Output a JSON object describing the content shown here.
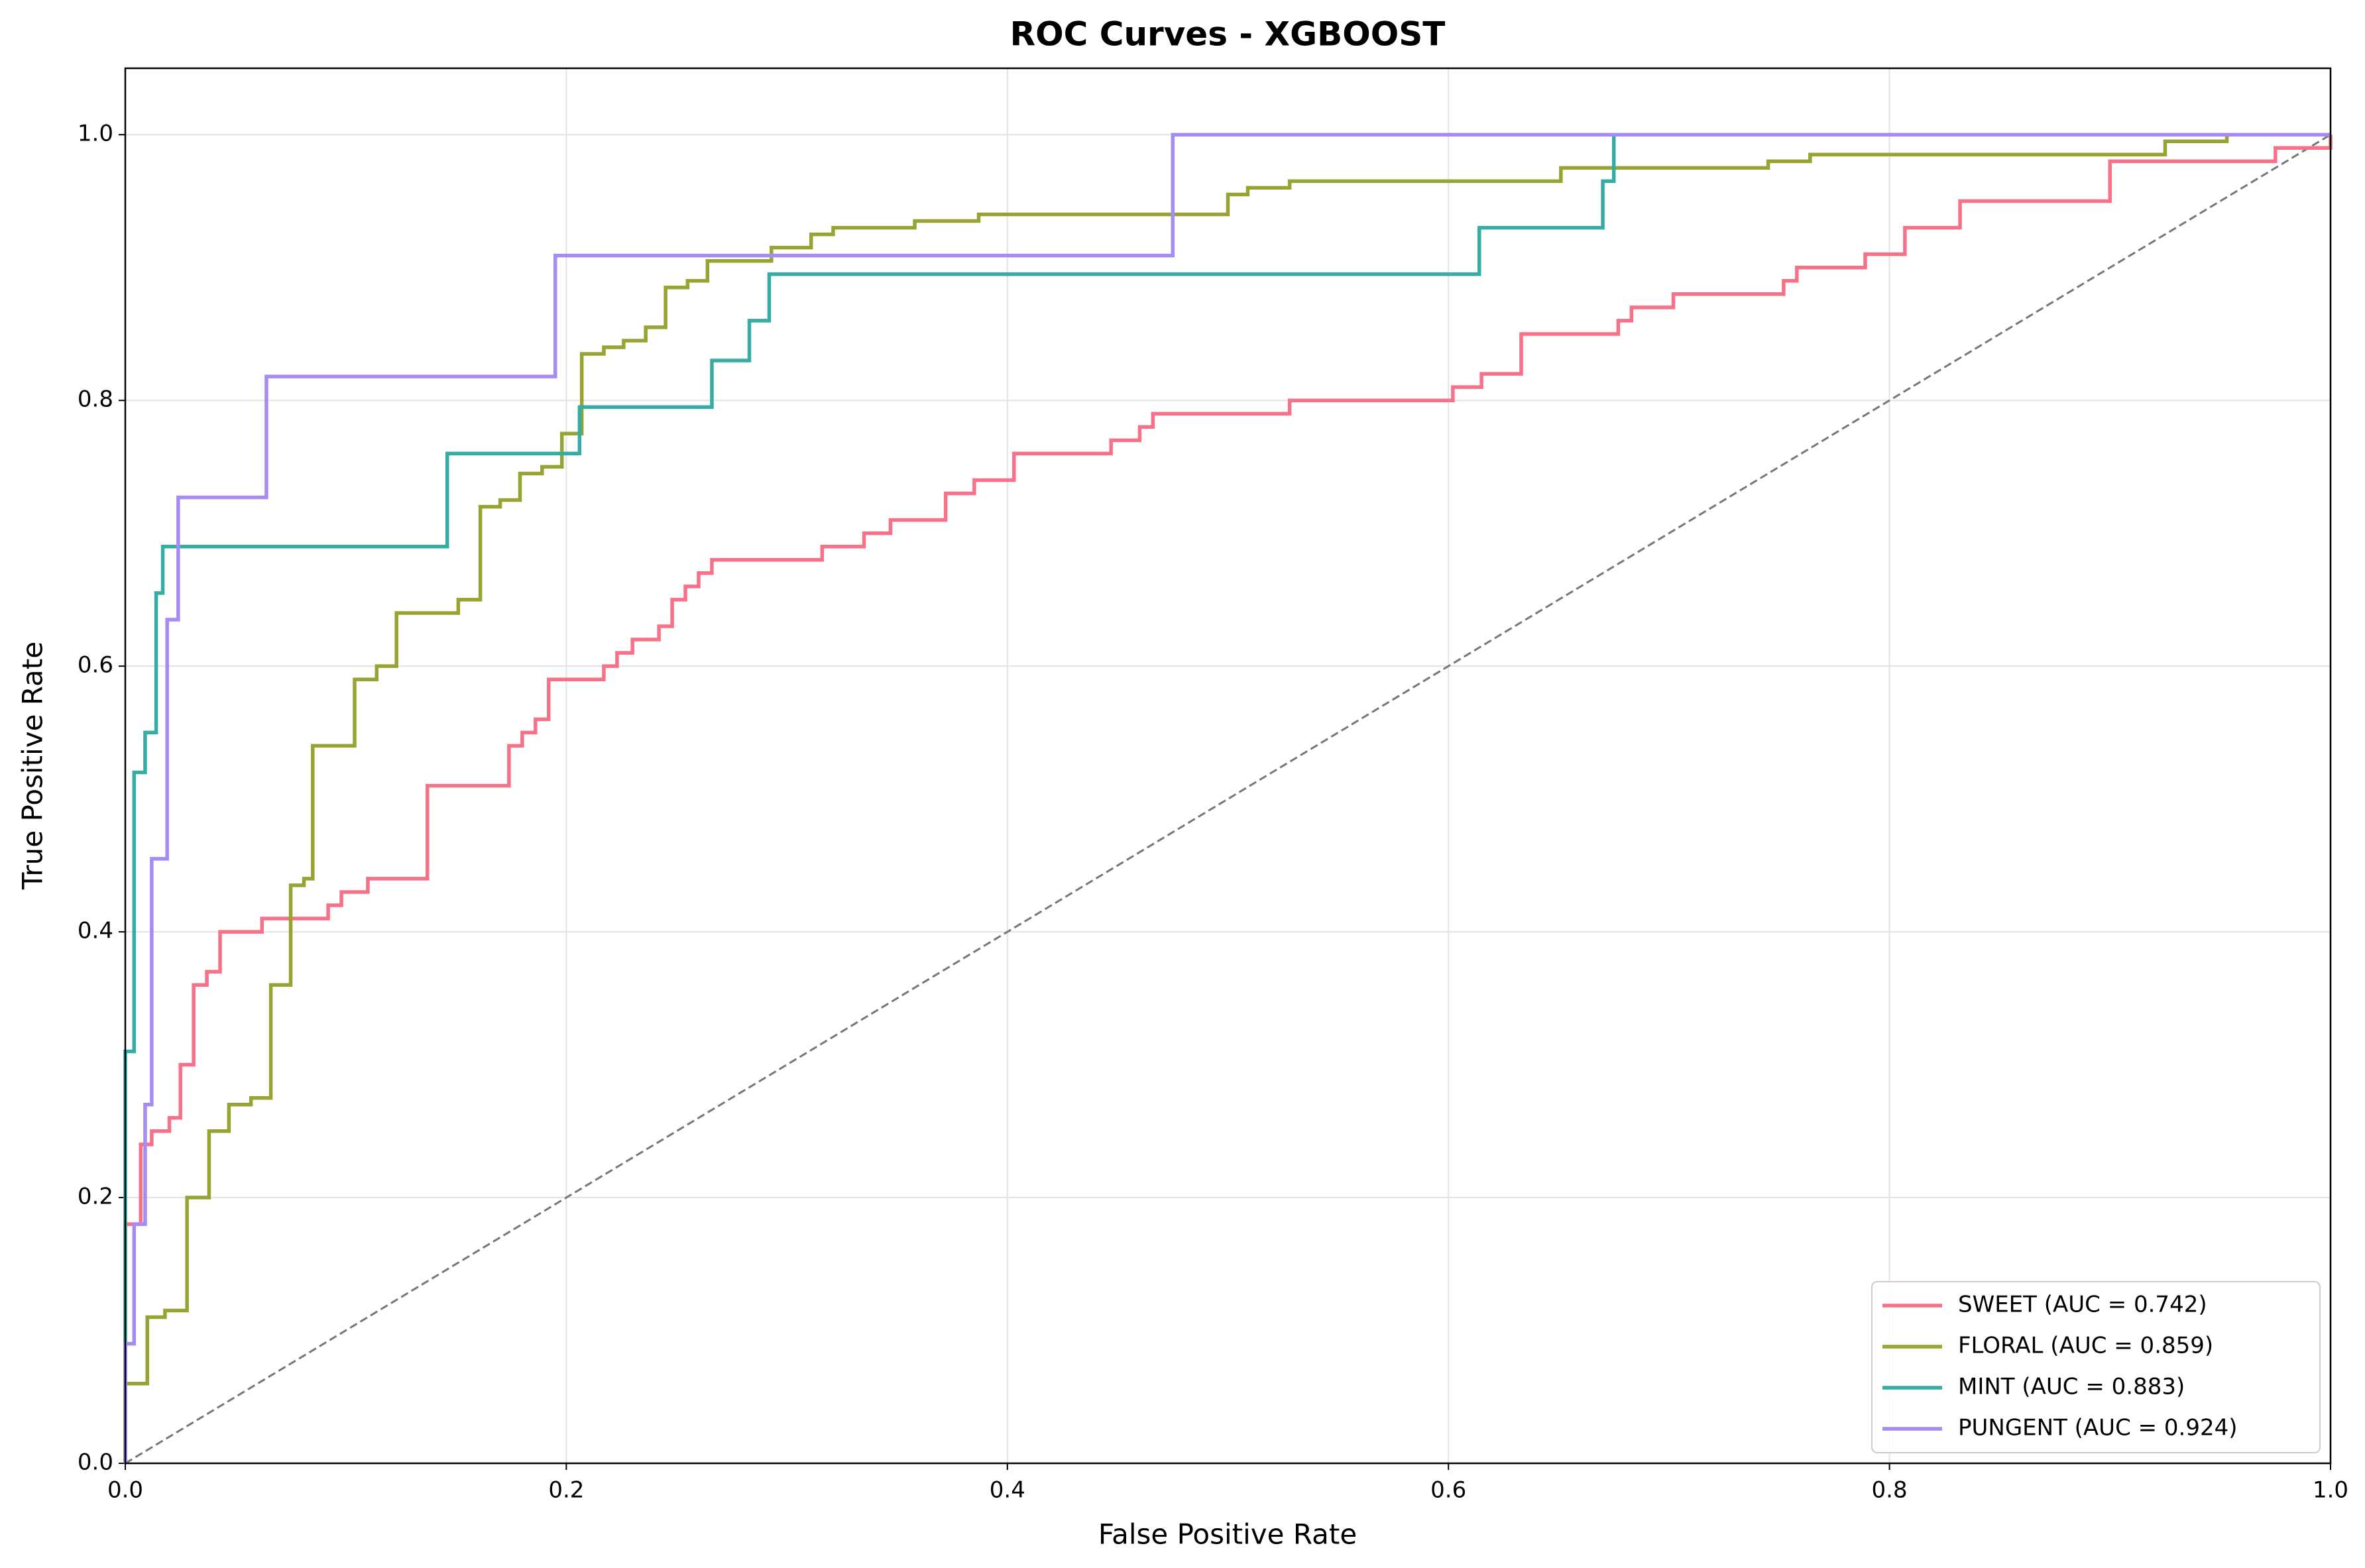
{
  "chart_data": {
    "type": "line",
    "title": "ROC Curves - XGBOOST",
    "xlabel": "False Positive Rate",
    "ylabel": "True Positive Rate",
    "xlim": [
      0,
      1
    ],
    "ylim": [
      0,
      1.05
    ],
    "xticks": [
      {
        "value": 0,
        "label": "0.0"
      },
      0.2,
      0.4,
      0.6,
      0.8,
      {
        "value": 1,
        "label": "1.0"
      }
    ],
    "yticks": [
      {
        "value": 0,
        "label": "0.0"
      },
      0.2,
      0.4,
      0.6,
      0.8,
      {
        "value": 1,
        "label": "1.0"
      }
    ],
    "grid": true,
    "legend": "lower right",
    "reference_line": {
      "x": [
        0,
        1
      ],
      "values": [
        0,
        1
      ],
      "color": "#777777"
    },
    "series": [
      {
        "name": "SWEET (AUC = 0.742)",
        "color": "#f77189",
        "x": [
          0,
          0,
          0.007,
          0.007,
          0.012,
          0.012,
          0.02,
          0.02,
          0.025,
          0.025,
          0.031,
          0.031,
          0.037,
          0.037,
          0.043,
          0.043,
          0.062,
          0.062,
          0.092,
          0.092,
          0.098,
          0.098,
          0.11,
          0.11,
          0.137,
          0.137,
          0.174,
          0.174,
          0.18,
          0.18,
          0.186,
          0.186,
          0.192,
          0.192,
          0.217,
          0.217,
          0.223,
          0.223,
          0.23,
          0.23,
          0.242,
          0.242,
          0.248,
          0.248,
          0.254,
          0.254,
          0.26,
          0.26,
          0.266,
          0.266,
          0.316,
          0.316,
          0.335,
          0.335,
          0.347,
          0.347,
          0.372,
          0.372,
          0.385,
          0.385,
          0.403,
          0.403,
          0.447,
          0.447,
          0.46,
          0.46,
          0.466,
          0.466,
          0.528,
          0.528,
          0.602,
          0.602,
          0.615,
          0.615,
          0.633,
          0.633,
          0.677,
          0.677,
          0.683,
          0.683,
          0.702,
          0.702,
          0.752,
          0.752,
          0.758,
          0.758,
          0.789,
          0.789,
          0.807,
          0.807,
          0.832,
          0.832,
          0.9,
          0.9,
          0.975,
          0.975,
          1,
          1
        ],
        "values": [
          0,
          0.18,
          0.18,
          0.24,
          0.24,
          0.25,
          0.25,
          0.26,
          0.26,
          0.3,
          0.3,
          0.36,
          0.36,
          0.37,
          0.37,
          0.4,
          0.4,
          0.41,
          0.41,
          0.42,
          0.42,
          0.43,
          0.43,
          0.44,
          0.44,
          0.51,
          0.51,
          0.54,
          0.54,
          0.55,
          0.55,
          0.56,
          0.56,
          0.59,
          0.59,
          0.6,
          0.6,
          0.61,
          0.61,
          0.62,
          0.62,
          0.63,
          0.63,
          0.65,
          0.65,
          0.66,
          0.66,
          0.67,
          0.67,
          0.68,
          0.68,
          0.69,
          0.69,
          0.7,
          0.7,
          0.71,
          0.71,
          0.73,
          0.73,
          0.74,
          0.74,
          0.76,
          0.76,
          0.77,
          0.77,
          0.78,
          0.78,
          0.79,
          0.79,
          0.8,
          0.8,
          0.81,
          0.81,
          0.82,
          0.82,
          0.85,
          0.85,
          0.86,
          0.86,
          0.87,
          0.87,
          0.88,
          0.88,
          0.89,
          0.89,
          0.9,
          0.9,
          0.91,
          0.91,
          0.93,
          0.93,
          0.95,
          0.95,
          0.98,
          0.98,
          0.99,
          0.99,
          1
        ]
      },
      {
        "name": "FLORAL (AUC = 0.859)",
        "color": "#97a431",
        "x": [
          0,
          0,
          0.01,
          0.01,
          0.018,
          0.018,
          0.028,
          0.028,
          0.038,
          0.038,
          0.047,
          0.047,
          0.057,
          0.057,
          0.066,
          0.066,
          0.075,
          0.075,
          0.081,
          0.081,
          0.085,
          0.085,
          0.104,
          0.104,
          0.114,
          0.114,
          0.123,
          0.123,
          0.151,
          0.151,
          0.161,
          0.161,
          0.17,
          0.17,
          0.179,
          0.179,
          0.189,
          0.189,
          0.198,
          0.198,
          0.207,
          0.207,
          0.217,
          0.217,
          0.226,
          0.226,
          0.236,
          0.236,
          0.245,
          0.245,
          0.255,
          0.255,
          0.264,
          0.264,
          0.293,
          0.293,
          0.311,
          0.311,
          0.321,
          0.321,
          0.358,
          0.358,
          0.387,
          0.387,
          0.5,
          0.5,
          0.509,
          0.509,
          0.528,
          0.528,
          0.651,
          0.651,
          0.745,
          0.745,
          0.764,
          0.764,
          0.925,
          0.925,
          0.953,
          0.953,
          1
        ],
        "values": [
          0,
          0.06,
          0.06,
          0.11,
          0.11,
          0.115,
          0.115,
          0.2,
          0.2,
          0.25,
          0.25,
          0.27,
          0.27,
          0.275,
          0.275,
          0.36,
          0.36,
          0.435,
          0.435,
          0.44,
          0.44,
          0.54,
          0.54,
          0.59,
          0.59,
          0.6,
          0.6,
          0.64,
          0.64,
          0.65,
          0.65,
          0.72,
          0.72,
          0.725,
          0.725,
          0.745,
          0.745,
          0.75,
          0.75,
          0.775,
          0.775,
          0.835,
          0.835,
          0.84,
          0.84,
          0.845,
          0.845,
          0.855,
          0.855,
          0.885,
          0.885,
          0.89,
          0.89,
          0.905,
          0.905,
          0.915,
          0.915,
          0.925,
          0.925,
          0.93,
          0.93,
          0.935,
          0.935,
          0.94,
          0.94,
          0.955,
          0.955,
          0.96,
          0.96,
          0.965,
          0.965,
          0.975,
          0.975,
          0.98,
          0.98,
          0.985,
          0.985,
          0.995,
          0.995,
          1,
          1
        ]
      },
      {
        "name": "MINT (AUC = 0.883)",
        "color": "#36ada4",
        "x": [
          0,
          0,
          0.004,
          0.004,
          0.009,
          0.009,
          0.014,
          0.014,
          0.017,
          0.017,
          0.146,
          0.146,
          0.206,
          0.206,
          0.266,
          0.266,
          0.283,
          0.283,
          0.292,
          0.292,
          0.614,
          0.614,
          0.67,
          0.67,
          0.675,
          0.675,
          1
        ],
        "values": [
          0,
          0.31,
          0.31,
          0.52,
          0.52,
          0.55,
          0.55,
          0.655,
          0.655,
          0.69,
          0.69,
          0.76,
          0.76,
          0.795,
          0.795,
          0.83,
          0.83,
          0.86,
          0.86,
          0.895,
          0.895,
          0.93,
          0.93,
          0.965,
          0.965,
          1,
          1
        ]
      },
      {
        "name": "PUNGENT (AUC = 0.924)",
        "color": "#a48cf4",
        "x": [
          0,
          0,
          0.004,
          0.004,
          0.009,
          0.009,
          0.012,
          0.012,
          0.019,
          0.019,
          0.024,
          0.024,
          0.064,
          0.064,
          0.195,
          0.195,
          0.475,
          0.475,
          1
        ],
        "values": [
          0,
          0.09,
          0.09,
          0.18,
          0.18,
          0.27,
          0.27,
          0.455,
          0.455,
          0.635,
          0.635,
          0.727,
          0.727,
          0.818,
          0.818,
          0.909,
          0.909,
          1,
          1
        ]
      }
    ]
  }
}
